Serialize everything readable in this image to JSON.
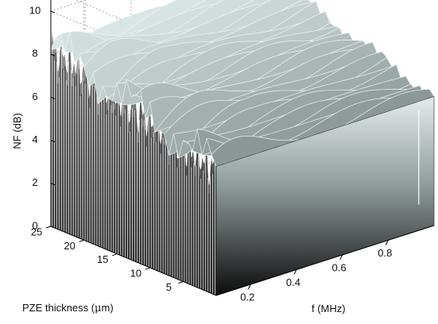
{
  "chart_data": {
    "type": "surface",
    "title": "",
    "xlabel": "f (MHz)",
    "ylabel": "PZE thickness (µm)",
    "zlabel": "NF (dB)",
    "xlabel_parts": [
      "f (MHz)"
    ],
    "ylabel_parts": [
      "PZE thickness (",
      "μ",
      "m)"
    ],
    "x_ticks": [
      0.2,
      0.4,
      0.6,
      0.8
    ],
    "y_ticks": [
      5,
      10,
      15,
      20,
      25
    ],
    "z_ticks": [
      0,
      2,
      4,
      6,
      8,
      10
    ],
    "xlim": [
      0.05,
      1.0
    ],
    "ylim": [
      0,
      25
    ],
    "zlim": [
      0,
      11
    ],
    "grid": true,
    "colormap": "gray",
    "surface_summary": {
      "description_values": "NF rises from ~6 dB at low thickness to ~8.5 dB at high thickness, with a strong oscillatory ripple along PZE thickness at low frequency",
      "nf_low_thickness": 6,
      "nf_high_thickness": 8.5,
      "ripple_amplitude": 1.2
    }
  }
}
